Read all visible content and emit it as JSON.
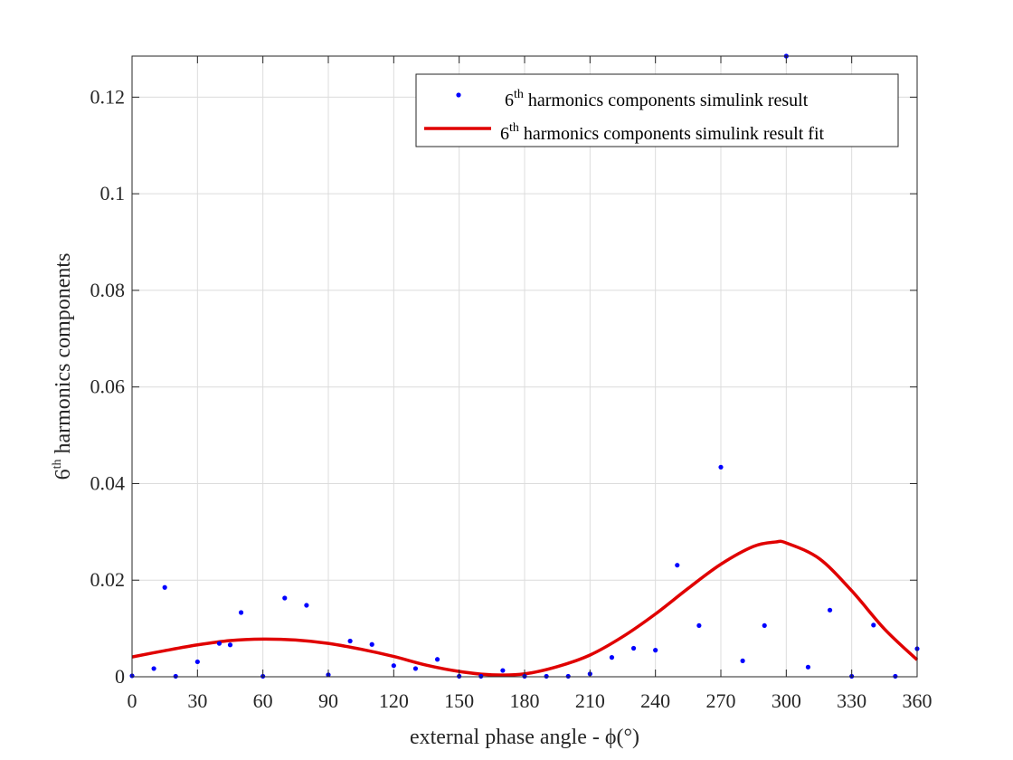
{
  "chart_data": {
    "type": "scatter",
    "xlabel": "external phase angle - ϕ(°)",
    "ylabel": {
      "base": "6",
      "sup": "th",
      "rest": " harmonics components"
    },
    "xlim": [
      0,
      360
    ],
    "ylim": [
      0,
      0.1285
    ],
    "xticks": [
      "0",
      "30",
      "60",
      "90",
      "120",
      "150",
      "180",
      "210",
      "240",
      "270",
      "300",
      "330",
      "360"
    ],
    "yticks": [
      "0",
      "0.02",
      "0.04",
      "0.06",
      "0.08",
      "0.1",
      "0.12"
    ],
    "grid": true,
    "legend_position": "top-right",
    "series": [
      {
        "name": {
          "base": "6",
          "sup": "th",
          "rest": " harmonics components simulink result"
        },
        "kind": "points",
        "color": "#0000ff",
        "x": [
          0,
          10,
          15,
          20,
          30,
          40,
          45,
          50,
          60,
          70,
          80,
          90,
          100,
          110,
          120,
          130,
          140,
          150,
          160,
          170,
          180,
          190,
          200,
          210,
          220,
          230,
          240,
          250,
          260,
          270,
          280,
          290,
          300,
          310,
          320,
          330,
          340,
          350,
          360
        ],
        "y": [
          0.0002,
          0.0017,
          0.0185,
          0.0001,
          0.0031,
          0.0069,
          0.0066,
          0.0133,
          0.0001,
          0.0163,
          0.0148,
          0.0004,
          0.0074,
          0.0067,
          0.0023,
          0.0017,
          0.0036,
          0.0001,
          0.0001,
          0.0013,
          0.0001,
          0.0001,
          0.0001,
          0.0006,
          0.004,
          0.0059,
          0.0055,
          0.0231,
          0.0106,
          0.0434,
          0.0033,
          0.0106,
          0.1285,
          0.002,
          0.0138,
          0.0001,
          0.0107,
          0.0001,
          0.0058
        ]
      },
      {
        "name": {
          "base": "6",
          "sup": "th",
          "rest": " harmonics components simulink result fit"
        },
        "kind": "line",
        "color": "#e00000",
        "x": [
          0,
          15,
          30,
          45,
          60,
          75,
          90,
          105,
          120,
          135,
          150,
          165,
          180,
          195,
          210,
          225,
          240,
          255,
          270,
          285,
          295,
          300,
          315,
          330,
          345,
          360
        ],
        "y": [
          0.0041,
          0.0054,
          0.0066,
          0.0075,
          0.0078,
          0.0076,
          0.0069,
          0.0057,
          0.0042,
          0.0024,
          0.0011,
          0.0004,
          0.0006,
          0.0021,
          0.0045,
          0.0083,
          0.013,
          0.0183,
          0.0233,
          0.027,
          0.0279,
          0.0277,
          0.0245,
          0.0178,
          0.0099,
          0.0035
        ]
      }
    ]
  }
}
